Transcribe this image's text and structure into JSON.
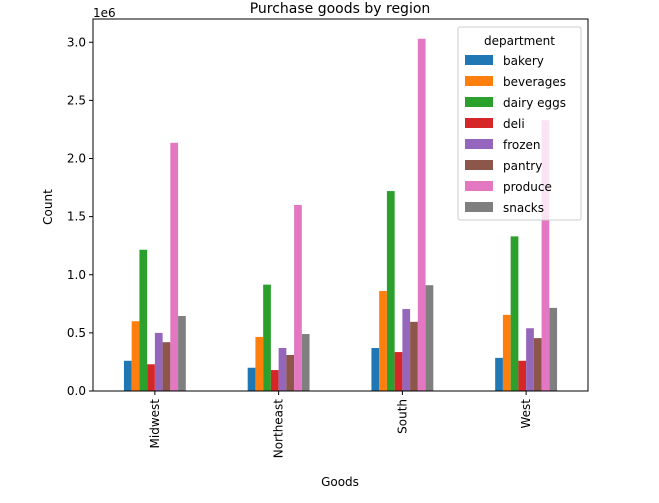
{
  "chart_data": {
    "type": "bar",
    "title": "Purchase goods by region",
    "xlabel": "Goods",
    "ylabel": "Count",
    "y_scale_label": "1e6",
    "categories": [
      "Midwest",
      "Northeast",
      "South",
      "West"
    ],
    "ylim": [
      0,
      3200000
    ],
    "yticks": [
      0,
      500000,
      1000000,
      1500000,
      2000000,
      2500000,
      3000000
    ],
    "ytick_labels": [
      "0.0",
      "0.5",
      "1.0",
      "1.5",
      "2.0",
      "2.5",
      "3.0"
    ],
    "grid": false,
    "legend": {
      "title": "department",
      "placement": "top-right"
    },
    "series": [
      {
        "name": "bakery",
        "color": "#1f77b4",
        "values": [
          260000,
          200000,
          370000,
          285000
        ]
      },
      {
        "name": "beverages",
        "color": "#ff7f0e",
        "values": [
          600000,
          465000,
          860000,
          655000
        ]
      },
      {
        "name": "dairy eggs",
        "color": "#2ca02c",
        "values": [
          1215000,
          915000,
          1720000,
          1330000
        ]
      },
      {
        "name": "deli",
        "color": "#d62728",
        "values": [
          230000,
          180000,
          335000,
          260000
        ]
      },
      {
        "name": "frozen",
        "color": "#9467bd",
        "values": [
          500000,
          370000,
          705000,
          540000
        ]
      },
      {
        "name": "pantry",
        "color": "#8c564b",
        "values": [
          420000,
          310000,
          595000,
          455000
        ]
      },
      {
        "name": "produce",
        "color": "#e377c2",
        "values": [
          2135000,
          1600000,
          3030000,
          2330000
        ]
      },
      {
        "name": "snacks",
        "color": "#7f7f7f",
        "values": [
          645000,
          490000,
          910000,
          715000
        ]
      }
    ]
  }
}
